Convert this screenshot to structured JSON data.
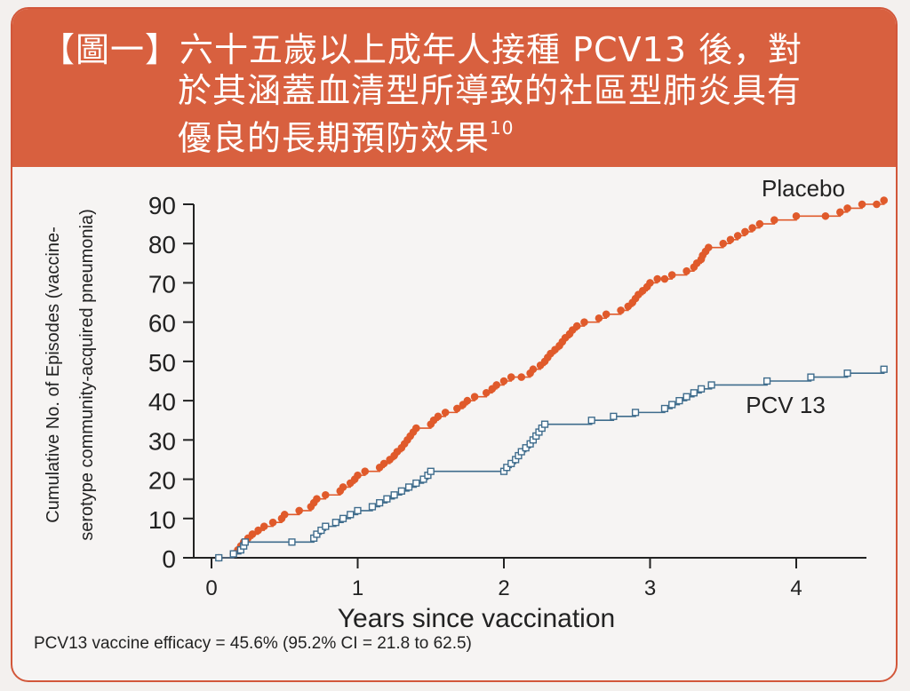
{
  "figure": {
    "title_line1": "【圖一】六十五歲以上成年人接種 PCV13 後，對",
    "title_line2": "於其涵蓋血清型所導致的社區型肺炎具有",
    "title_line3": "優良的長期預防效果",
    "title_superscript": "10",
    "footnote": "PCV13 vaccine efficacy = 45.6% (95.2% CI = 21.8 to 62.5)"
  },
  "colors": {
    "banner": "#d8603f",
    "placebo": "#e05a2b",
    "pcv13": "#3f6c8c",
    "axis": "#222222"
  },
  "chart_data": {
    "type": "line",
    "title": "",
    "xlabel": "Years since vaccination",
    "ylabel_line1": "Cumulative No. of Episodes (vaccine-",
    "ylabel_line2": "serotype community-acquired pneumonia)",
    "xlim": [
      0,
      4.6
    ],
    "ylim": [
      0,
      92
    ],
    "x_ticks": [
      0,
      1,
      2,
      3,
      4
    ],
    "y_ticks": [
      0,
      10,
      20,
      30,
      40,
      50,
      60,
      70,
      80,
      90
    ],
    "grid": false,
    "series": [
      {
        "name": "Placebo",
        "marker": "circle",
        "points": [
          [
            0.05,
            0
          ],
          [
            0.15,
            1
          ],
          [
            0.18,
            2
          ],
          [
            0.2,
            3
          ],
          [
            0.22,
            4
          ],
          [
            0.25,
            5
          ],
          [
            0.28,
            6
          ],
          [
            0.32,
            7
          ],
          [
            0.36,
            8
          ],
          [
            0.42,
            9
          ],
          [
            0.48,
            10
          ],
          [
            0.5,
            11
          ],
          [
            0.6,
            12
          ],
          [
            0.68,
            13
          ],
          [
            0.7,
            14
          ],
          [
            0.72,
            15
          ],
          [
            0.78,
            16
          ],
          [
            0.88,
            17
          ],
          [
            0.9,
            18
          ],
          [
            0.95,
            19
          ],
          [
            0.98,
            20
          ],
          [
            1.0,
            21
          ],
          [
            1.05,
            22
          ],
          [
            1.15,
            23
          ],
          [
            1.18,
            24
          ],
          [
            1.22,
            25
          ],
          [
            1.25,
            26
          ],
          [
            1.27,
            27
          ],
          [
            1.3,
            28
          ],
          [
            1.32,
            29
          ],
          [
            1.34,
            30
          ],
          [
            1.36,
            31
          ],
          [
            1.38,
            32
          ],
          [
            1.4,
            33
          ],
          [
            1.5,
            34
          ],
          [
            1.52,
            35
          ],
          [
            1.55,
            36
          ],
          [
            1.6,
            37
          ],
          [
            1.68,
            38
          ],
          [
            1.72,
            39
          ],
          [
            1.75,
            40
          ],
          [
            1.8,
            41
          ],
          [
            1.88,
            42
          ],
          [
            1.92,
            43
          ],
          [
            1.95,
            44
          ],
          [
            2.0,
            45
          ],
          [
            2.05,
            46
          ],
          [
            2.12,
            46
          ],
          [
            2.18,
            47
          ],
          [
            2.2,
            48
          ],
          [
            2.25,
            49
          ],
          [
            2.28,
            50
          ],
          [
            2.3,
            51
          ],
          [
            2.32,
            52
          ],
          [
            2.35,
            53
          ],
          [
            2.38,
            54
          ],
          [
            2.4,
            55
          ],
          [
            2.42,
            56
          ],
          [
            2.45,
            57
          ],
          [
            2.47,
            58
          ],
          [
            2.5,
            59
          ],
          [
            2.55,
            60
          ],
          [
            2.65,
            61
          ],
          [
            2.7,
            62
          ],
          [
            2.8,
            63
          ],
          [
            2.85,
            64
          ],
          [
            2.88,
            65
          ],
          [
            2.9,
            66
          ],
          [
            2.92,
            67
          ],
          [
            2.95,
            68
          ],
          [
            2.98,
            69
          ],
          [
            3.0,
            70
          ],
          [
            3.05,
            71
          ],
          [
            3.1,
            71
          ],
          [
            3.15,
            72
          ],
          [
            3.25,
            73
          ],
          [
            3.3,
            74
          ],
          [
            3.32,
            75
          ],
          [
            3.35,
            76
          ],
          [
            3.36,
            77
          ],
          [
            3.38,
            78
          ],
          [
            3.4,
            79
          ],
          [
            3.5,
            80
          ],
          [
            3.55,
            81
          ],
          [
            3.6,
            82
          ],
          [
            3.65,
            83
          ],
          [
            3.7,
            84
          ],
          [
            3.75,
            85
          ],
          [
            3.85,
            86
          ],
          [
            4.0,
            87
          ],
          [
            4.2,
            87
          ],
          [
            4.3,
            88
          ],
          [
            4.35,
            89
          ],
          [
            4.45,
            90
          ],
          [
            4.55,
            90
          ],
          [
            4.6,
            91
          ]
        ]
      },
      {
        "name": "PCV 13",
        "marker": "square",
        "points": [
          [
            0.05,
            0
          ],
          [
            0.15,
            1
          ],
          [
            0.2,
            2
          ],
          [
            0.22,
            3
          ],
          [
            0.23,
            4
          ],
          [
            0.55,
            4
          ],
          [
            0.7,
            5
          ],
          [
            0.72,
            6
          ],
          [
            0.75,
            7
          ],
          [
            0.78,
            8
          ],
          [
            0.85,
            9
          ],
          [
            0.9,
            10
          ],
          [
            0.95,
            11
          ],
          [
            1.0,
            12
          ],
          [
            1.1,
            13
          ],
          [
            1.15,
            14
          ],
          [
            1.2,
            15
          ],
          [
            1.25,
            16
          ],
          [
            1.3,
            17
          ],
          [
            1.35,
            18
          ],
          [
            1.4,
            19
          ],
          [
            1.45,
            20
          ],
          [
            1.48,
            21
          ],
          [
            1.5,
            22
          ],
          [
            2.0,
            22
          ],
          [
            2.02,
            23
          ],
          [
            2.05,
            24
          ],
          [
            2.08,
            25
          ],
          [
            2.1,
            26
          ],
          [
            2.12,
            27
          ],
          [
            2.15,
            28
          ],
          [
            2.18,
            29
          ],
          [
            2.2,
            30
          ],
          [
            2.22,
            31
          ],
          [
            2.24,
            32
          ],
          [
            2.26,
            33
          ],
          [
            2.28,
            34
          ],
          [
            2.6,
            35
          ],
          [
            2.75,
            36
          ],
          [
            2.9,
            37
          ],
          [
            3.1,
            38
          ],
          [
            3.15,
            39
          ],
          [
            3.2,
            40
          ],
          [
            3.25,
            41
          ],
          [
            3.3,
            42
          ],
          [
            3.35,
            43
          ],
          [
            3.42,
            44
          ],
          [
            3.8,
            45
          ],
          [
            4.1,
            46
          ],
          [
            4.35,
            47
          ],
          [
            4.6,
            48
          ]
        ]
      }
    ]
  }
}
